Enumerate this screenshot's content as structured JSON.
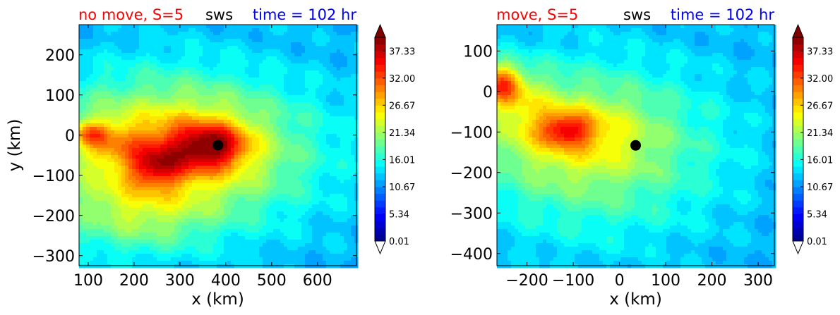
{
  "chart_data": [
    {
      "type": "contour",
      "title_left": "no move, S=5",
      "title_center": "sws",
      "title_right": "time = 102 hr",
      "xlabel": "x (km)",
      "ylabel": "y (km)",
      "xlim": [
        80,
        685
      ],
      "ylim": [
        -325,
        275
      ],
      "xticks": [
        100,
        200,
        300,
        400,
        500,
        600
      ],
      "yticks": [
        200,
        100,
        0,
        -100,
        -200,
        -300
      ],
      "center_marker": {
        "x": 383,
        "y": -25
      },
      "blobs": [
        {
          "x": 280,
          "y": -40,
          "sx": 230,
          "sy": 140,
          "v": 10
        },
        {
          "x": 300,
          "y": -30,
          "sx": 150,
          "sy": 100,
          "v": 6
        },
        {
          "x": 340,
          "y": -30,
          "sx": 70,
          "sy": 45,
          "v": 8
        },
        {
          "x": 380,
          "y": -25,
          "sx": 45,
          "sy": 35,
          "v": 8
        },
        {
          "x": 245,
          "y": -80,
          "sx": 40,
          "sy": 35,
          "v": 9
        },
        {
          "x": 140,
          "y": -15,
          "sx": 55,
          "sy": 35,
          "v": 5
        },
        {
          "x": 105,
          "y": 5,
          "sx": 25,
          "sy": 20,
          "v": 7
        },
        {
          "x": 200,
          "y": -200,
          "sx": 110,
          "sy": 70,
          "v": 5
        }
      ],
      "base_value": 12,
      "colorbar": {
        "ticks": [
          "37.33",
          "32.00",
          "26.67",
          "21.34",
          "16.01",
          "10.67",
          "5.34",
          "0.01"
        ],
        "min": 0.01,
        "max": 40,
        "extend": "both"
      }
    },
    {
      "type": "contour",
      "title_left": "move, S=5",
      "title_center": "sws",
      "title_right": "time = 102 hr",
      "xlabel": "x (km)",
      "ylabel": "",
      "xlim": [
        -265,
        335
      ],
      "ylim": [
        -430,
        165
      ],
      "xticks": [
        -200,
        -100,
        0,
        100,
        200,
        300
      ],
      "yticks": [
        100,
        0,
        -100,
        -200,
        -300,
        -400
      ],
      "center_marker": {
        "x": 35,
        "y": -133
      },
      "blobs": [
        {
          "x": -60,
          "y": -140,
          "sx": 200,
          "sy": 150,
          "v": 9
        },
        {
          "x": -100,
          "y": -100,
          "sx": 110,
          "sy": 70,
          "v": 6
        },
        {
          "x": -115,
          "y": -95,
          "sx": 40,
          "sy": 28,
          "v": 10
        },
        {
          "x": -255,
          "y": 20,
          "sx": 30,
          "sy": 35,
          "v": 14
        },
        {
          "x": -220,
          "y": -20,
          "sx": 60,
          "sy": 60,
          "v": 5
        }
      ],
      "base_value": 12,
      "colorbar": {
        "ticks": [
          "37.33",
          "32.00",
          "26.67",
          "21.34",
          "16.01",
          "10.67",
          "5.34",
          "0.01"
        ],
        "min": 0.01,
        "max": 40,
        "extend": "both"
      }
    }
  ]
}
